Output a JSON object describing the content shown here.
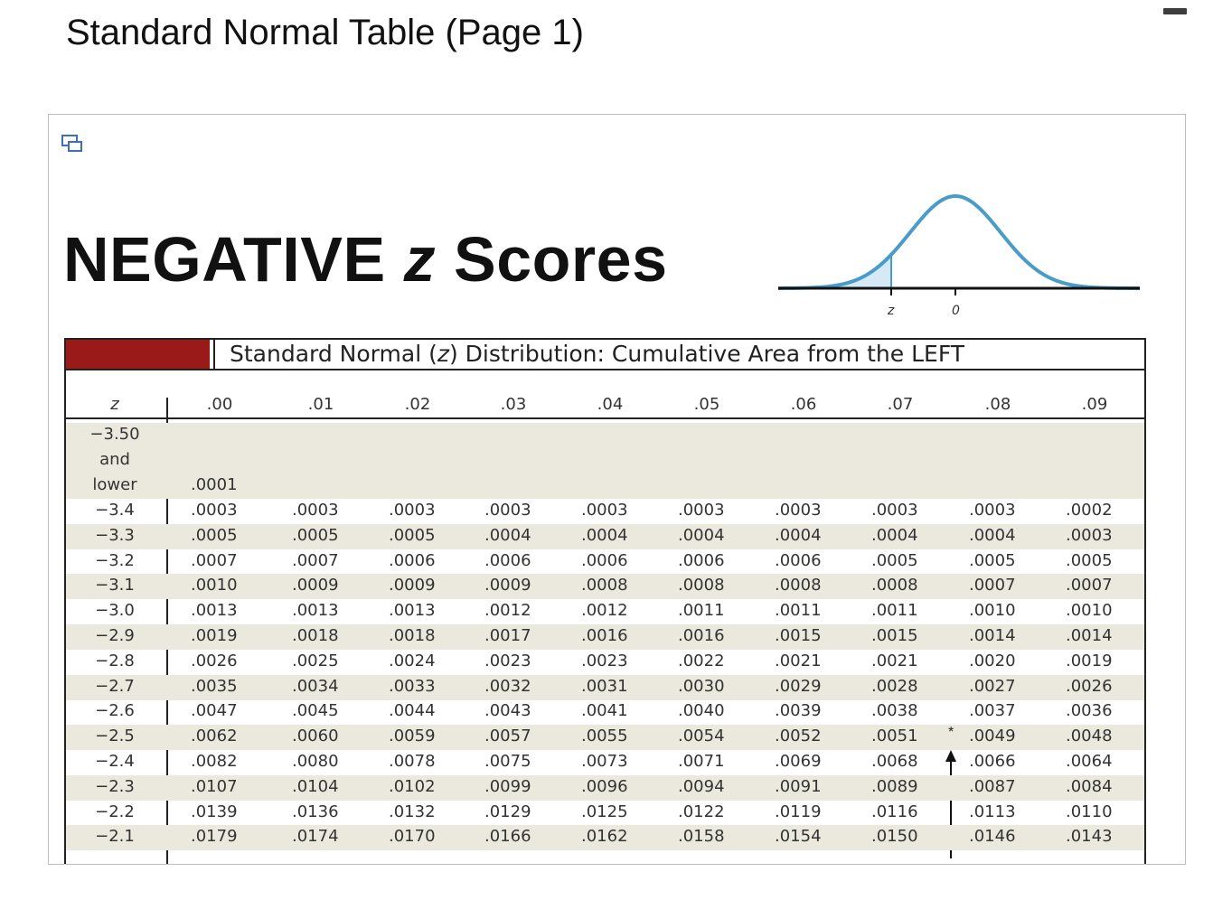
{
  "page": {
    "title": "Standard Normal Table (Page 1)"
  },
  "window": {
    "icon": "window-icon",
    "minimize_icon": "minimize-icon"
  },
  "figure": {
    "title_prefix": "NEGATIVE ",
    "title_z": "z",
    "title_suffix": " Scores",
    "curve": {
      "z_label": "z",
      "zero_label": "0",
      "fill_color": "#d5eaf4",
      "line_color": "#4a9cc8"
    }
  },
  "table": {
    "banner_color": "#9a1a1a",
    "band_color": "#ebe8dd",
    "banner_prefix": "Standard Normal (",
    "banner_z": "z",
    "banner_suffix": ") Distribution: Cumulative Area from the LEFT",
    "z_header": "z",
    "columns": [
      ".00",
      ".01",
      ".02",
      ".03",
      ".04",
      ".05",
      ".06",
      ".07",
      ".08",
      ".09"
    ],
    "first_row": {
      "z_lines": [
        "−3.50",
        "and",
        "lower"
      ],
      "values": [
        ".0001"
      ]
    },
    "rows": [
      {
        "z": "−3.4",
        "values": [
          ".0003",
          ".0003",
          ".0003",
          ".0003",
          ".0003",
          ".0003",
          ".0003",
          ".0003",
          ".0003",
          ".0002"
        ]
      },
      {
        "z": "−3.3",
        "values": [
          ".0005",
          ".0005",
          ".0005",
          ".0004",
          ".0004",
          ".0004",
          ".0004",
          ".0004",
          ".0004",
          ".0003"
        ]
      },
      {
        "z": "−3.2",
        "values": [
          ".0007",
          ".0007",
          ".0006",
          ".0006",
          ".0006",
          ".0006",
          ".0006",
          ".0005",
          ".0005",
          ".0005"
        ]
      },
      {
        "z": "−3.1",
        "values": [
          ".0010",
          ".0009",
          ".0009",
          ".0009",
          ".0008",
          ".0008",
          ".0008",
          ".0008",
          ".0007",
          ".0007"
        ]
      },
      {
        "z": "−3.0",
        "values": [
          ".0013",
          ".0013",
          ".0013",
          ".0012",
          ".0012",
          ".0011",
          ".0011",
          ".0011",
          ".0010",
          ".0010"
        ]
      },
      {
        "z": "−2.9",
        "values": [
          ".0019",
          ".0018",
          ".0018",
          ".0017",
          ".0016",
          ".0016",
          ".0015",
          ".0015",
          ".0014",
          ".0014"
        ]
      },
      {
        "z": "−2.8",
        "values": [
          ".0026",
          ".0025",
          ".0024",
          ".0023",
          ".0023",
          ".0022",
          ".0021",
          ".0021",
          ".0020",
          ".0019"
        ]
      },
      {
        "z": "−2.7",
        "values": [
          ".0035",
          ".0034",
          ".0033",
          ".0032",
          ".0031",
          ".0030",
          ".0029",
          ".0028",
          ".0027",
          ".0026"
        ]
      },
      {
        "z": "−2.6",
        "values": [
          ".0047",
          ".0045",
          ".0044",
          ".0043",
          ".0041",
          ".0040",
          ".0039",
          ".0038",
          ".0037",
          ".0036"
        ]
      },
      {
        "z": "−2.5",
        "values": [
          ".0062",
          ".0060",
          ".0059",
          ".0057",
          ".0055",
          ".0054",
          ".0052",
          ".0051",
          ".0049",
          ".0048"
        ]
      },
      {
        "z": "−2.4",
        "values": [
          ".0082",
          ".0080",
          ".0078",
          ".0075",
          ".0073",
          ".0071",
          ".0069",
          ".0068",
          ".0066",
          ".0064"
        ]
      },
      {
        "z": "−2.3",
        "values": [
          ".0107",
          ".0104",
          ".0102",
          ".0099",
          ".0096",
          ".0094",
          ".0091",
          ".0089",
          ".0087",
          ".0084"
        ]
      },
      {
        "z": "−2.2",
        "values": [
          ".0139",
          ".0136",
          ".0132",
          ".0129",
          ".0125",
          ".0122",
          ".0119",
          ".0116",
          ".0113",
          ".0110"
        ]
      },
      {
        "z": "−2.1",
        "values": [
          ".0179",
          ".0174",
          ".0170",
          ".0166",
          ".0162",
          ".0158",
          ".0154",
          ".0150",
          ".0146",
          ".0143"
        ]
      }
    ],
    "annotation": {
      "symbol": "*",
      "row_z": "−2.5",
      "between_columns": [
        ".07",
        ".08"
      ]
    }
  }
}
